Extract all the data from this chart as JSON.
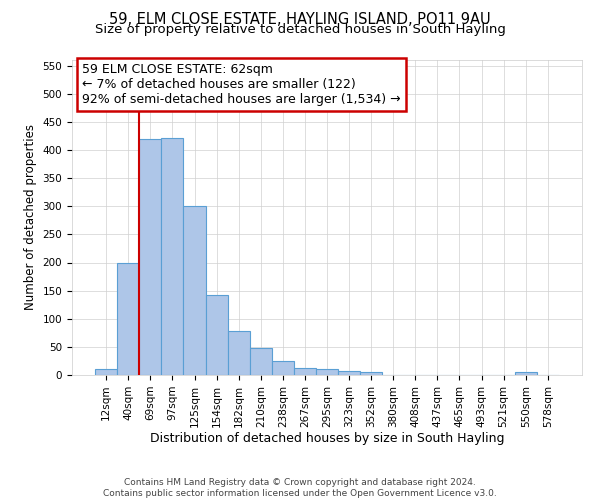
{
  "title": "59, ELM CLOSE ESTATE, HAYLING ISLAND, PO11 9AU",
  "subtitle": "Size of property relative to detached houses in South Hayling",
  "xlabel": "Distribution of detached houses by size in South Hayling",
  "ylabel": "Number of detached properties",
  "bin_labels": [
    "12sqm",
    "40sqm",
    "69sqm",
    "97sqm",
    "125sqm",
    "154sqm",
    "182sqm",
    "210sqm",
    "238sqm",
    "267sqm",
    "295sqm",
    "323sqm",
    "352sqm",
    "380sqm",
    "408sqm",
    "437sqm",
    "465sqm",
    "493sqm",
    "521sqm",
    "550sqm",
    "578sqm"
  ],
  "bin_values": [
    10,
    200,
    420,
    422,
    300,
    143,
    78,
    48,
    25,
    13,
    10,
    8,
    5,
    0,
    0,
    0,
    0,
    0,
    0,
    5,
    0
  ],
  "bar_color": "#aec6e8",
  "bar_edge_color": "#5a9fd4",
  "bar_edge_width": 0.8,
  "vline_pos": 1.5,
  "vline_color": "#cc0000",
  "annotation_line1": "59 ELM CLOSE ESTATE: 62sqm",
  "annotation_line2": "← 7% of detached houses are smaller (122)",
  "annotation_line3": "92% of semi-detached houses are larger (1,534) →",
  "ylim": [
    0,
    560
  ],
  "yticks": [
    0,
    50,
    100,
    150,
    200,
    250,
    300,
    350,
    400,
    450,
    500,
    550
  ],
  "footer_line1": "Contains HM Land Registry data © Crown copyright and database right 2024.",
  "footer_line2": "Contains public sector information licensed under the Open Government Licence v3.0.",
  "title_fontsize": 10.5,
  "subtitle_fontsize": 9.5,
  "xlabel_fontsize": 9,
  "ylabel_fontsize": 8.5,
  "tick_fontsize": 7.5,
  "annotation_fontsize": 9,
  "footer_fontsize": 6.5,
  "background_color": "#ffffff",
  "grid_color": "#d0d0d0",
  "ann_box_color": "#cc0000"
}
